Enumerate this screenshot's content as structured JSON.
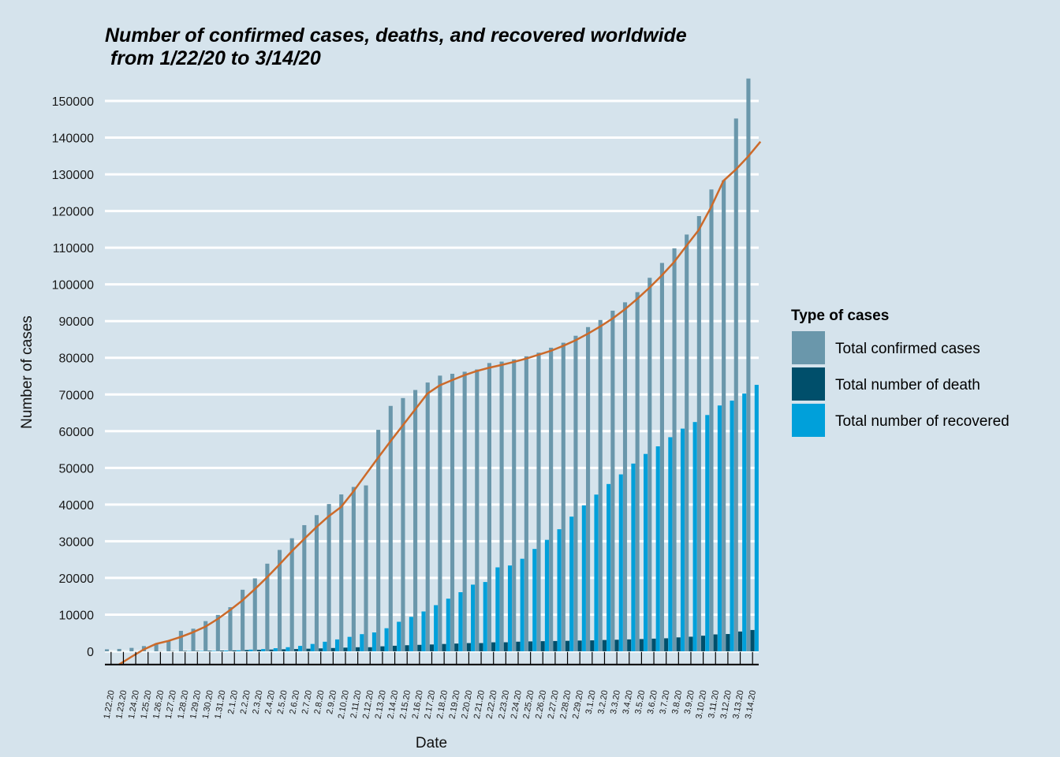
{
  "chart_data": {
    "type": "bar",
    "title": "Number of confirmed cases, deaths, and recovered worldwide",
    "subtitle": " from 1/22/20 to 3/14/20",
    "xlabel": "Date",
    "ylabel": "Number of cases",
    "ylim": [
      -3600,
      160000
    ],
    "yticks": [
      0,
      10000,
      20000,
      30000,
      40000,
      50000,
      60000,
      70000,
      80000,
      90000,
      100000,
      110000,
      120000,
      130000,
      140000,
      150000
    ],
    "grid": "horizontal",
    "legend": {
      "title": "Type of cases",
      "position": "right"
    },
    "categories": [
      "1.22.20",
      "1.23.20",
      "1.24.20",
      "1.25.20",
      "1.26.20",
      "1.27.20",
      "1.28.20",
      "1.29.20",
      "1.30.20",
      "1.31.20",
      "2.1.20",
      "2.2.20",
      "2.3.20",
      "2.4.20",
      "2.5.20",
      "2.6.20",
      "2.7.20",
      "2.8.20",
      "2.9.20",
      "2.10.20",
      "2.11.20",
      "2.12.20",
      "2.13.20",
      "2.14.20",
      "2.15.20",
      "2.16.20",
      "2.17.20",
      "2.18.20",
      "2.19.20",
      "2.20.20",
      "2.21.20",
      "2.22.20",
      "2.23.20",
      "2.24.20",
      "2.25.20",
      "2.26.20",
      "2.27.20",
      "2.28.20",
      "2.29.20",
      "3.1.20",
      "3.2.20",
      "3.3.20",
      "3.4.20",
      "3.5.20",
      "3.6.20",
      "3.7.20",
      "3.8.20",
      "3.9.20",
      "3.10.20",
      "3.11.20",
      "3.12.20",
      "3.13.20",
      "3.14.20"
    ],
    "series": [
      {
        "name": "Total confirmed cases",
        "color": "#6a97ab",
        "values": [
          555,
          654,
          941,
          1434,
          2118,
          2927,
          5578,
          6166,
          8234,
          9927,
          12038,
          16787,
          19881,
          23892,
          27635,
          30817,
          34391,
          37120,
          40150,
          42762,
          44802,
          45221,
          60368,
          66885,
          69030,
          71224,
          73258,
          75136,
          75639,
          76197,
          76819,
          78572,
          78958,
          79561,
          80406,
          81388,
          82746,
          84112,
          86011,
          88369,
          90306,
          92840,
          95120,
          97886,
          101801,
          105847,
          109821,
          113590,
          118620,
          125875,
          128352,
          145205,
          156101
        ]
      },
      {
        "name": "Total number of death",
        "color": "#004f6b",
        "values": [
          17,
          18,
          26,
          42,
          56,
          82,
          131,
          133,
          171,
          213,
          259,
          362,
          426,
          492,
          564,
          634,
          719,
          806,
          906,
          1013,
          1113,
          1118,
          1371,
          1523,
          1666,
          1770,
          1868,
          2007,
          2122,
          2247,
          2251,
          2458,
          2469,
          2629,
          2708,
          2770,
          2814,
          2872,
          2941,
          2996,
          3085,
          3160,
          3254,
          3348,
          3460,
          3558,
          3802,
          3988,
          4262,
          4615,
          4720,
          5404,
          5819
        ]
      },
      {
        "name": "Total number of recovered",
        "color": "#00a0da",
        "values": [
          28,
          30,
          36,
          39,
          52,
          61,
          107,
          126,
          143,
          222,
          284,
          472,
          623,
          852,
          1124,
          1487,
          2011,
          2616,
          3244,
          3946,
          4683,
          5150,
          6295,
          8058,
          9395,
          10865,
          12583,
          14352,
          16121,
          18177,
          18890,
          22886,
          23394,
          25227,
          27905,
          30384,
          33277,
          36711,
          39782,
          42716,
          45602,
          48228,
          51170,
          53796,
          55865,
          58358,
          60694,
          62494,
          64404,
          67003,
          68324,
          70251,
          72624
        ]
      }
    ],
    "trend": {
      "name": "smoothed trend",
      "color": "#cc6a2a"
    }
  }
}
